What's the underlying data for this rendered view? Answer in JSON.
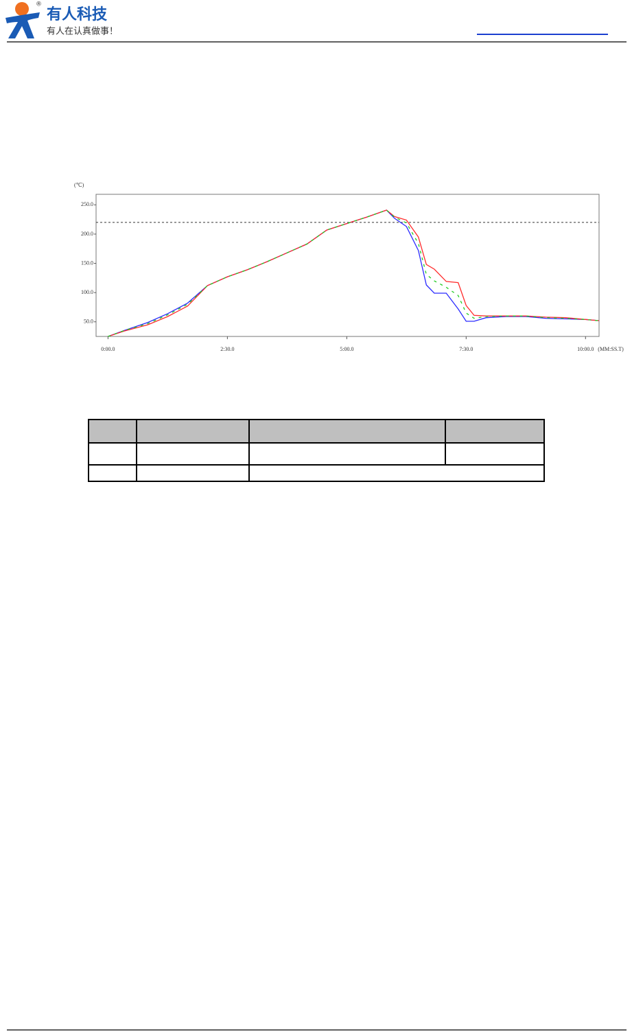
{
  "header": {
    "brand": "有人科技",
    "slogan": "有人在认真做事！",
    "registered": "®"
  },
  "chart_data": {
    "type": "line",
    "y_unit": "(℃)",
    "x_unit": "(MM:SS.T)",
    "x": [
      0,
      20,
      50,
      75,
      100,
      125,
      150,
      175,
      200,
      225,
      250,
      275,
      300,
      325,
      350,
      360,
      375,
      390,
      400,
      410,
      425,
      440,
      450,
      460,
      475,
      500,
      525,
      550,
      575,
      600,
      617
    ],
    "series": [
      {
        "color": "#2b2bff",
        "values": [
          25,
          35,
          49,
          64,
          82,
          112,
          127,
          139,
          153,
          168,
          183,
          207,
          218,
          229,
          241,
          227,
          213,
          172,
          113,
          99,
          99,
          72,
          51,
          51,
          57,
          59,
          59,
          56,
          55,
          54,
          52
        ]
      },
      {
        "color": "#ff2b2b",
        "values": [
          25,
          34,
          45,
          59,
          77,
          112,
          127,
          139,
          153,
          168,
          183,
          207,
          218,
          229,
          241,
          230,
          224,
          195,
          148,
          140,
          119,
          117,
          78,
          61,
          60,
          60,
          60,
          58,
          57,
          54,
          52
        ]
      },
      {
        "color": "#22cc22",
        "values": [
          25,
          35,
          47,
          62,
          80,
          112,
          127,
          139,
          153,
          168,
          183,
          207,
          218,
          229,
          241,
          229,
          219,
          184,
          131,
          120,
          109,
          95,
          65,
          56,
          59,
          60,
          60,
          57,
          56,
          54,
          52
        ]
      }
    ],
    "threshold": 220,
    "xlim": [
      -15,
      617
    ],
    "ylim": [
      25,
      268
    ],
    "xticks": [
      {
        "value": 0,
        "label": "0:00.0"
      },
      {
        "value": 150,
        "label": "2:30.0"
      },
      {
        "value": 300,
        "label": "5:00.0"
      },
      {
        "value": 450,
        "label": "7:30.0"
      },
      {
        "value": 600,
        "label": "10:00.0"
      }
    ],
    "yticks": [
      {
        "value": 50,
        "label": "50.0"
      },
      {
        "value": 100,
        "label": "100.0"
      },
      {
        "value": 150,
        "label": "150.0"
      },
      {
        "value": 200,
        "label": "200.0"
      },
      {
        "value": 250,
        "label": "250.0"
      }
    ]
  }
}
